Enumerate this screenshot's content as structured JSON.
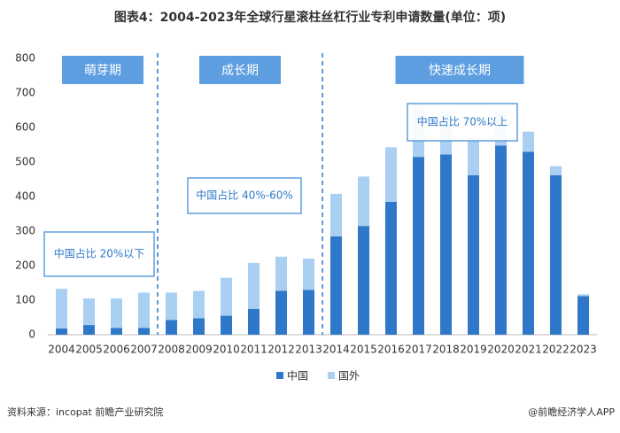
{
  "chart_data": {
    "type": "stacked_bar",
    "title": "图表4：2004-2023年全球行星滚柱丝杠行业专利申请数量(单位：项)",
    "categories": [
      "2004",
      "2005",
      "2006",
      "2007",
      "2008",
      "2009",
      "2010",
      "2011",
      "2012",
      "2013",
      "2014",
      "2015",
      "2016",
      "2017",
      "2018",
      "2019",
      "2020",
      "2021",
      "2022",
      "2023"
    ],
    "series": [
      {
        "name": "中国",
        "color": "#2f78c9",
        "values": [
          18,
          28,
          20,
          20,
          43,
          48,
          55,
          75,
          127,
          130,
          285,
          315,
          385,
          515,
          522,
          462,
          548,
          530,
          462,
          112
        ]
      },
      {
        "name": "国外",
        "color": "#a9cff2",
        "values": [
          115,
          77,
          85,
          102,
          79,
          79,
          110,
          133,
          99,
          90,
          123,
          143,
          158,
          155,
          128,
          108,
          97,
          58,
          26,
          5
        ]
      }
    ],
    "ylim": [
      0,
      800
    ],
    "yticks": [
      0,
      100,
      200,
      300,
      400,
      500,
      600,
      700,
      800
    ],
    "phases": [
      "萌芽期",
      "成长期",
      "快速成长期"
    ],
    "notes": [
      "中国占比 20%以下",
      "中国占比 40%-60%",
      "中国占比 70%以上"
    ],
    "source": "资料来源：incopat 前瞻产业研究院",
    "credit": "@前瞻经济学人APP"
  }
}
